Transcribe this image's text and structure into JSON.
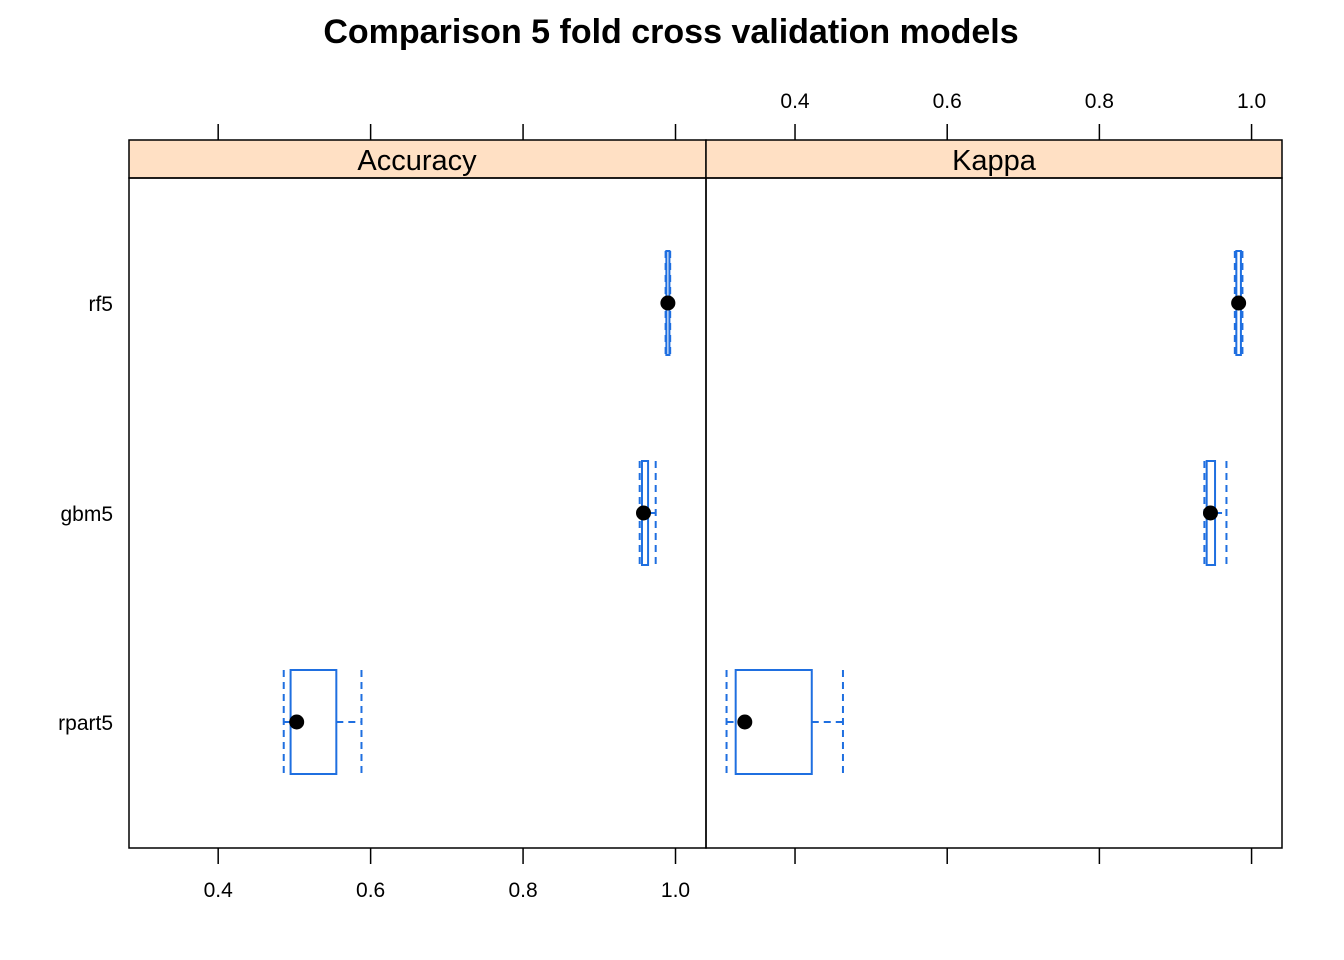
{
  "chart_data": {
    "type": "box",
    "title": "Comparison 5 fold cross validation models",
    "categories": [
      "rf5",
      "gbm5",
      "rpart5"
    ],
    "x_ticks": [
      0.4,
      0.6,
      0.8,
      1.0
    ],
    "x_tick_labels": [
      "0.4",
      "0.6",
      "0.8",
      "1.0"
    ],
    "xlim": [
      0.283,
      1.04
    ],
    "panels": [
      {
        "name": "Accuracy",
        "boxes": [
          {
            "category": "rf5",
            "min": 0.987,
            "q1": 0.988,
            "median": 0.99,
            "q3": 0.992,
            "max": 0.993
          },
          {
            "category": "gbm5",
            "min": 0.953,
            "q1": 0.956,
            "median": 0.958,
            "q3": 0.964,
            "max": 0.974
          },
          {
            "category": "rpart5",
            "min": 0.486,
            "q1": 0.495,
            "median": 0.503,
            "q3": 0.555,
            "max": 0.588
          }
        ]
      },
      {
        "name": "Kappa",
        "boxes": [
          {
            "category": "rf5",
            "min": 0.978,
            "q1": 0.98,
            "median": 0.983,
            "q3": 0.986,
            "max": 0.988
          },
          {
            "category": "gbm5",
            "min": 0.938,
            "q1": 0.941,
            "median": 0.946,
            "q3": 0.952,
            "max": 0.967
          },
          {
            "category": "rpart5",
            "min": 0.31,
            "q1": 0.322,
            "median": 0.334,
            "q3": 0.422,
            "max": 0.463
          }
        ]
      }
    ],
    "colors": {
      "box": "#1F6FE0",
      "median_dot": "#000000",
      "strip": "#FFE0C4",
      "frame": "#000000"
    },
    "grid": false
  }
}
